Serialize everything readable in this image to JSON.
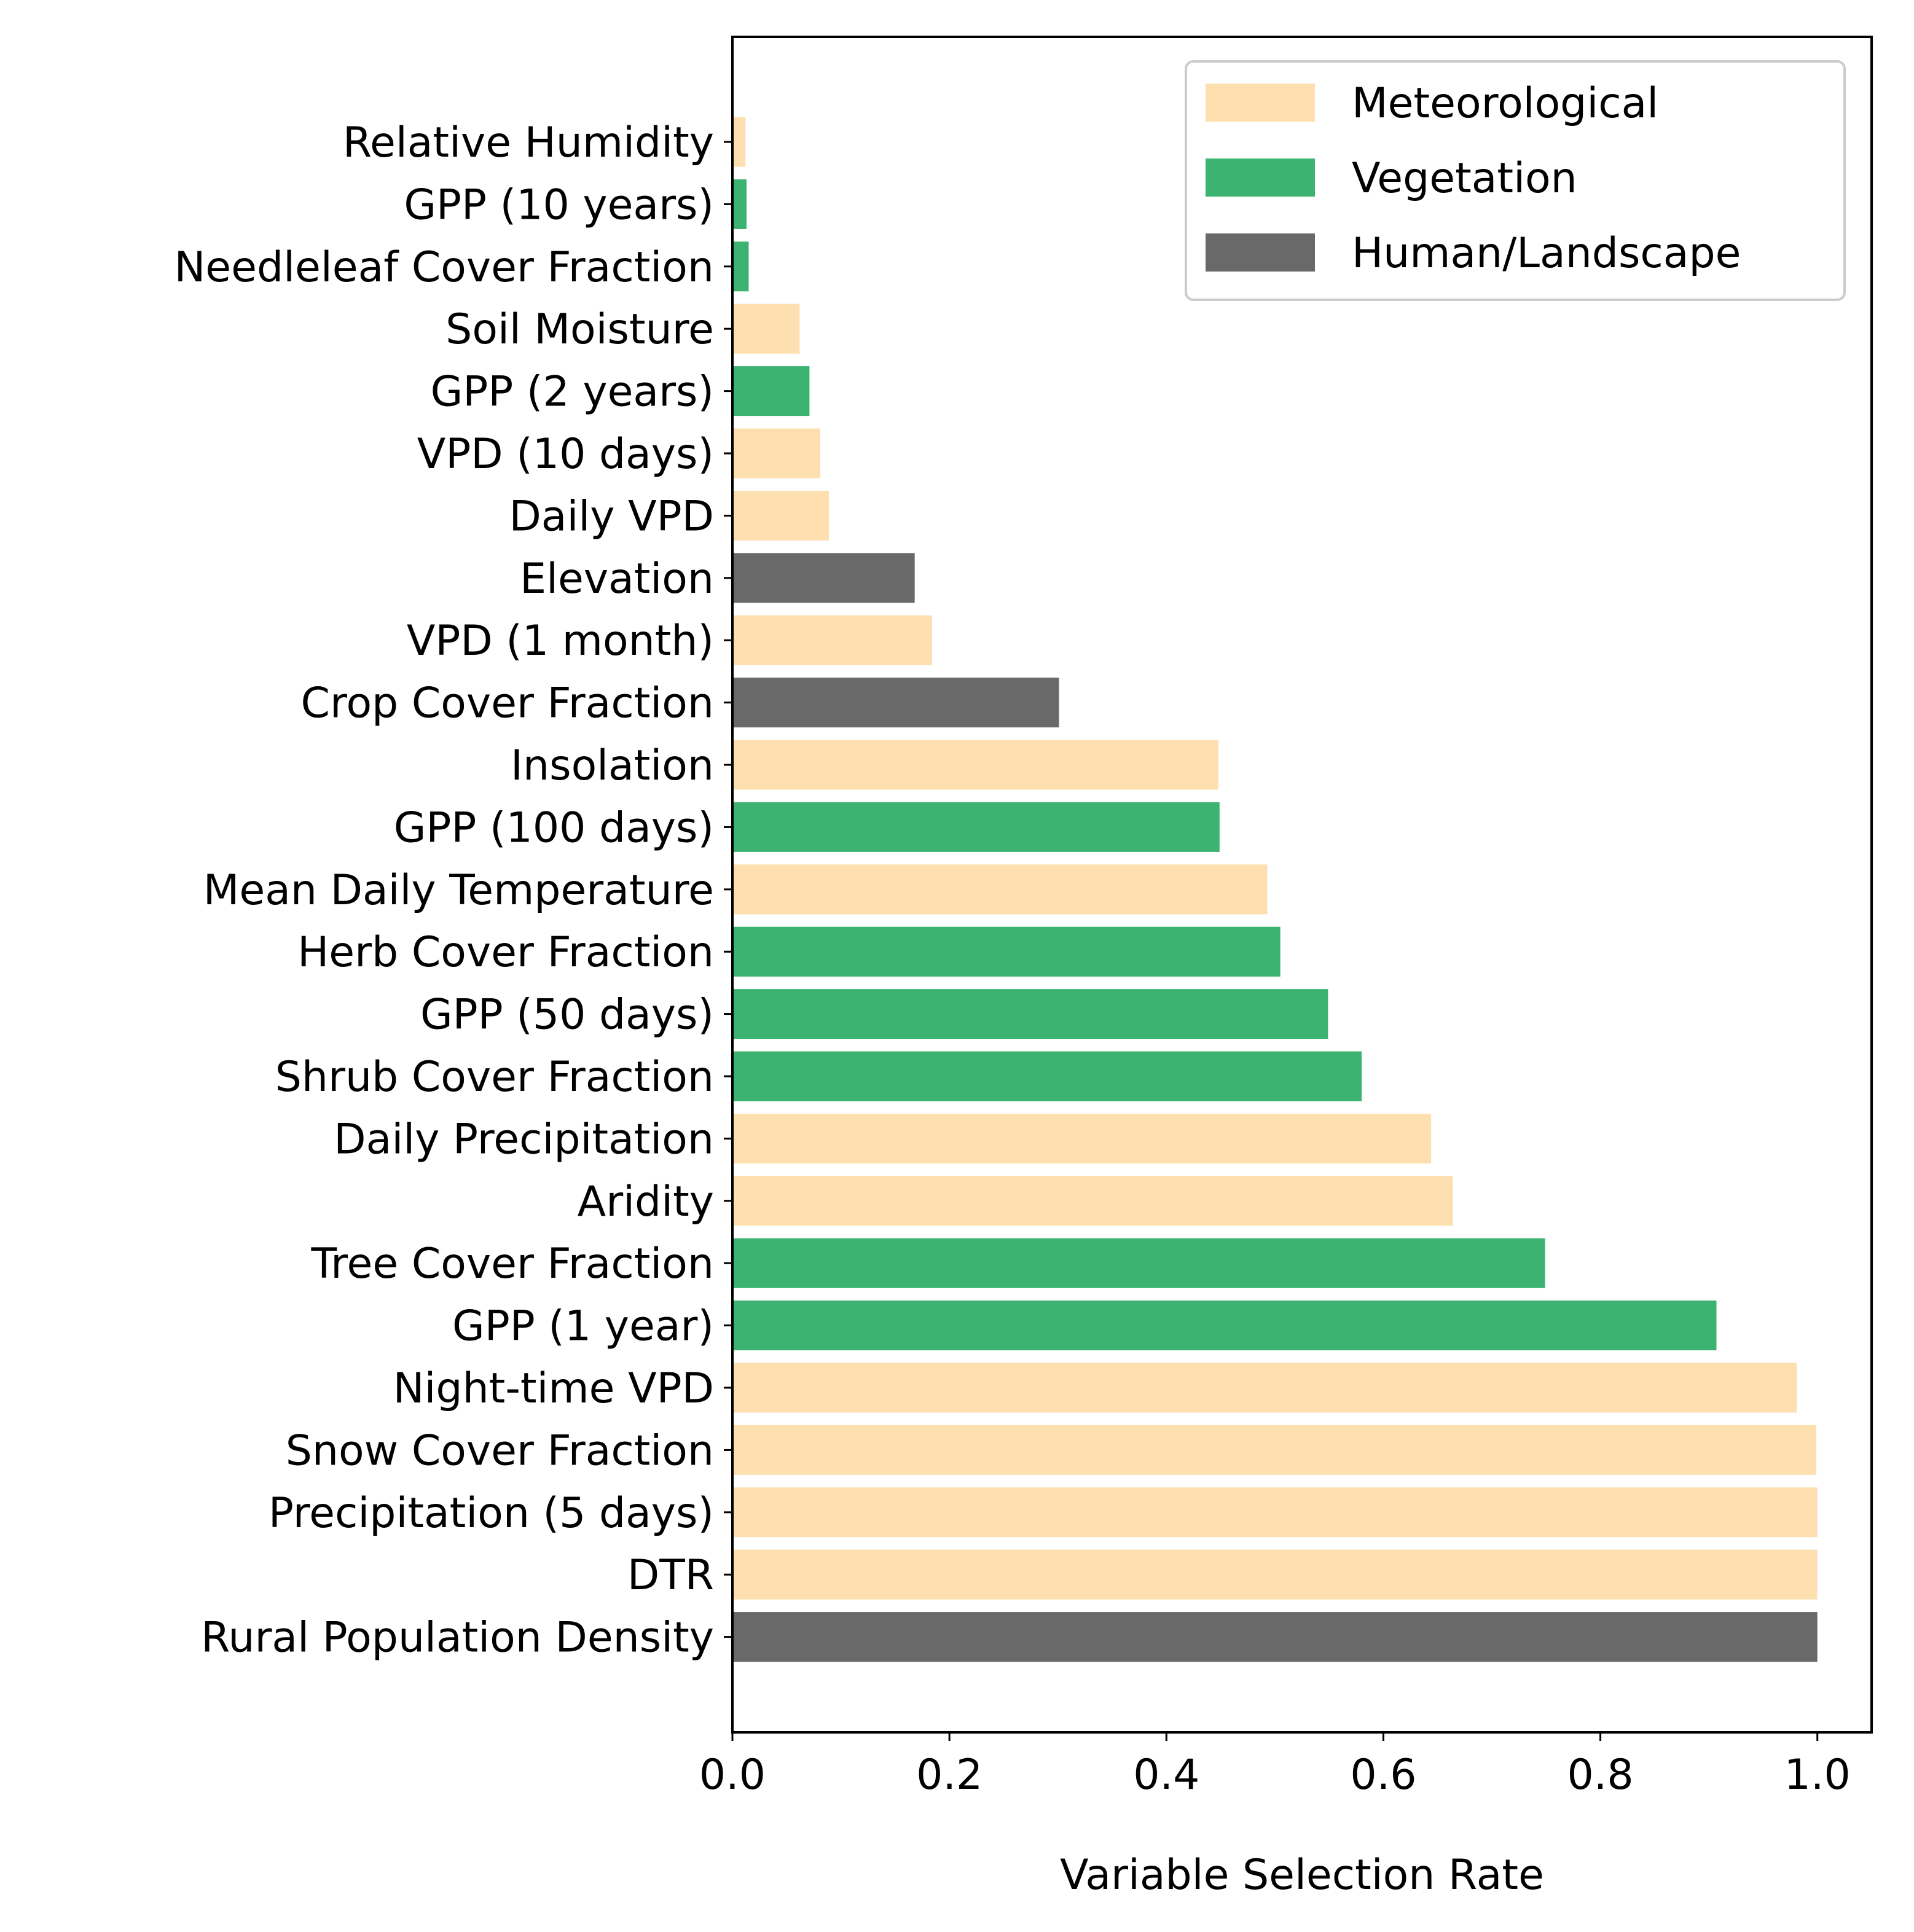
{
  "chart_data": {
    "type": "bar",
    "orientation": "horizontal",
    "title": "",
    "xlabel": "Variable Selection Rate",
    "ylabel": "",
    "xlim": [
      0.0,
      1.05
    ],
    "xticks": [
      0.0,
      0.2,
      0.4,
      0.6,
      0.8,
      1.0
    ],
    "xtick_labels": [
      "0.0",
      "0.2",
      "0.4",
      "0.6",
      "0.8",
      "1.0"
    ],
    "grid": false,
    "legend_position": "top-right",
    "legend": [
      {
        "label": "Meteorological",
        "color": "#FDDFB0"
      },
      {
        "label": "Vegetation",
        "color": "#3CB371"
      },
      {
        "label": "Human/Landscape",
        "color": "#696969"
      }
    ],
    "categories": [
      "Relative Humidity",
      "GPP (10 years)",
      "Needleleaf Cover Fraction",
      "Soil Moisture",
      "GPP (2 years)",
      "VPD (10 days)",
      "Daily VPD",
      "Elevation",
      "VPD (1 month)",
      "Crop Cover Fraction",
      "Insolation",
      "GPP (100 days)",
      "Mean Daily Temperature",
      "Herb Cover Fraction",
      "GPP (50 days)",
      "Shrub Cover Fraction",
      "Daily Precipitation",
      "Aridity",
      "Tree Cover Fraction",
      "GPP (1 year)",
      "Night-time VPD",
      "Snow Cover Fraction",
      "Precipitation (5 days)",
      "DTR",
      "Rural Population Density"
    ],
    "values": [
      0.012,
      0.013,
      0.015,
      0.062,
      0.071,
      0.081,
      0.089,
      0.168,
      0.184,
      0.301,
      0.448,
      0.449,
      0.493,
      0.505,
      0.549,
      0.58,
      0.644,
      0.664,
      0.749,
      0.907,
      0.981,
      0.999,
      1.0,
      1.0,
      1.0
    ],
    "groups": [
      "Meteorological",
      "Vegetation",
      "Vegetation",
      "Meteorological",
      "Vegetation",
      "Meteorological",
      "Meteorological",
      "Human/Landscape",
      "Meteorological",
      "Human/Landscape",
      "Meteorological",
      "Vegetation",
      "Meteorological",
      "Vegetation",
      "Vegetation",
      "Vegetation",
      "Meteorological",
      "Meteorological",
      "Vegetation",
      "Vegetation",
      "Meteorological",
      "Meteorological",
      "Meteorological",
      "Meteorological",
      "Human/Landscape"
    ]
  }
}
